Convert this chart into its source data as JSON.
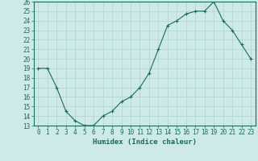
{
  "xlabel": "Humidex (Indice chaleur)",
  "ylabel": "",
  "x": [
    0,
    1,
    2,
    3,
    4,
    5,
    6,
    7,
    8,
    9,
    10,
    11,
    12,
    13,
    14,
    15,
    16,
    17,
    18,
    19,
    20,
    21,
    22,
    23
  ],
  "y": [
    19,
    19,
    17,
    14.5,
    13.5,
    13,
    13,
    14,
    14.5,
    15.5,
    16,
    17,
    18.5,
    21,
    23.5,
    24,
    24.7,
    25,
    25,
    26,
    24,
    23,
    21.5,
    20
  ],
  "line_color": "#1a6b5a",
  "marker": "+",
  "bg_color": "#ceeae6",
  "grid_color": "#aed4d0",
  "ylim": [
    13,
    26
  ],
  "yticks": [
    13,
    14,
    15,
    16,
    17,
    18,
    19,
    20,
    21,
    22,
    23,
    24,
    25,
    26
  ],
  "xticks": [
    0,
    1,
    2,
    3,
    4,
    5,
    6,
    7,
    8,
    9,
    10,
    11,
    12,
    13,
    14,
    15,
    16,
    17,
    18,
    19,
    20,
    21,
    22,
    23
  ],
  "tick_color": "#1a6b5a",
  "label_fontsize": 6.5,
  "tick_fontsize": 5.5,
  "xlabel_fontsize": 6.5,
  "marker_size": 3,
  "linewidth": 0.8
}
